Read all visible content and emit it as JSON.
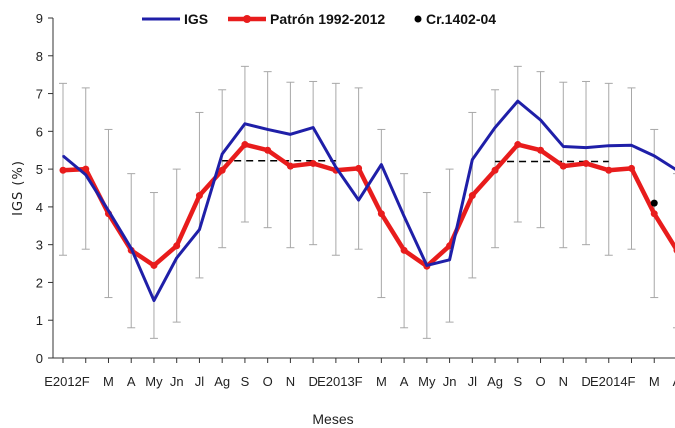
{
  "chart_data": {
    "type": "line",
    "xlabel": "Meses",
    "ylabel": "IGS (%)",
    "ylim": [
      0,
      9
    ],
    "yticks": [
      0,
      1,
      2,
      3,
      4,
      5,
      6,
      7,
      8,
      9
    ],
    "categories": [
      "E2012",
      "F",
      "M",
      "A",
      "My",
      "Jn",
      "Jl",
      "Ag",
      "S",
      "O",
      "N",
      "D",
      "E2013",
      "F",
      "M",
      "A",
      "My",
      "Jn",
      "Jl",
      "Ag",
      "S",
      "O",
      "N",
      "D",
      "E2014",
      "F",
      "M",
      "A"
    ],
    "grid": false,
    "legend_position": "top",
    "series": [
      {
        "name": "IGS",
        "color": "#1f1fa8",
        "values": [
          5.35,
          4.85,
          3.9,
          2.9,
          1.52,
          2.65,
          3.4,
          5.4,
          6.2,
          6.05,
          5.92,
          6.1,
          5.05,
          4.18,
          5.12,
          3.75,
          2.45,
          2.6,
          5.25,
          6.1,
          6.8,
          6.3,
          5.6,
          5.57,
          5.62,
          5.63,
          5.35,
          4.97
        ]
      },
      {
        "name": "Patrón 1992-2012",
        "color": "#e81c1c",
        "values": [
          4.97,
          5.0,
          3.82,
          2.85,
          2.45,
          2.97,
          4.3,
          4.97,
          5.65,
          5.5,
          5.08,
          5.15,
          4.97,
          5.02,
          3.82,
          2.85,
          2.43,
          2.97,
          4.3,
          4.97,
          5.65,
          5.5,
          5.08,
          5.15,
          4.97,
          5.02,
          3.82,
          2.85
        ],
        "error_upper": [
          7.27,
          7.15,
          6.05,
          4.88,
          4.38,
          5.0,
          6.5,
          7.1,
          7.72,
          7.58,
          7.3,
          7.32,
          7.27,
          7.15,
          6.05,
          4.88,
          4.38,
          5.0,
          6.5,
          7.1,
          7.72,
          7.58,
          7.3,
          7.32,
          7.27,
          7.15,
          6.05,
          4.88
        ],
        "error_lower": [
          2.72,
          2.88,
          1.6,
          0.8,
          0.52,
          0.95,
          2.12,
          2.92,
          3.6,
          3.45,
          2.92,
          3.0,
          2.72,
          2.88,
          1.6,
          0.8,
          0.52,
          0.95,
          2.12,
          2.92,
          3.6,
          3.45,
          2.92,
          3.0,
          2.72,
          2.88,
          1.6,
          0.8
        ]
      },
      {
        "name": "Cr.1402-04",
        "color": "#000000",
        "type": "scatter",
        "points": [
          {
            "category_index": 26,
            "value": 4.1
          }
        ]
      }
    ],
    "reference_lines": [
      {
        "style": "dashed",
        "color": "#000000",
        "from_index": 7,
        "to_index": 12,
        "value": 5.22
      },
      {
        "style": "dashed",
        "color": "#000000",
        "from_index": 19,
        "to_index": 24,
        "value": 5.2
      }
    ]
  }
}
